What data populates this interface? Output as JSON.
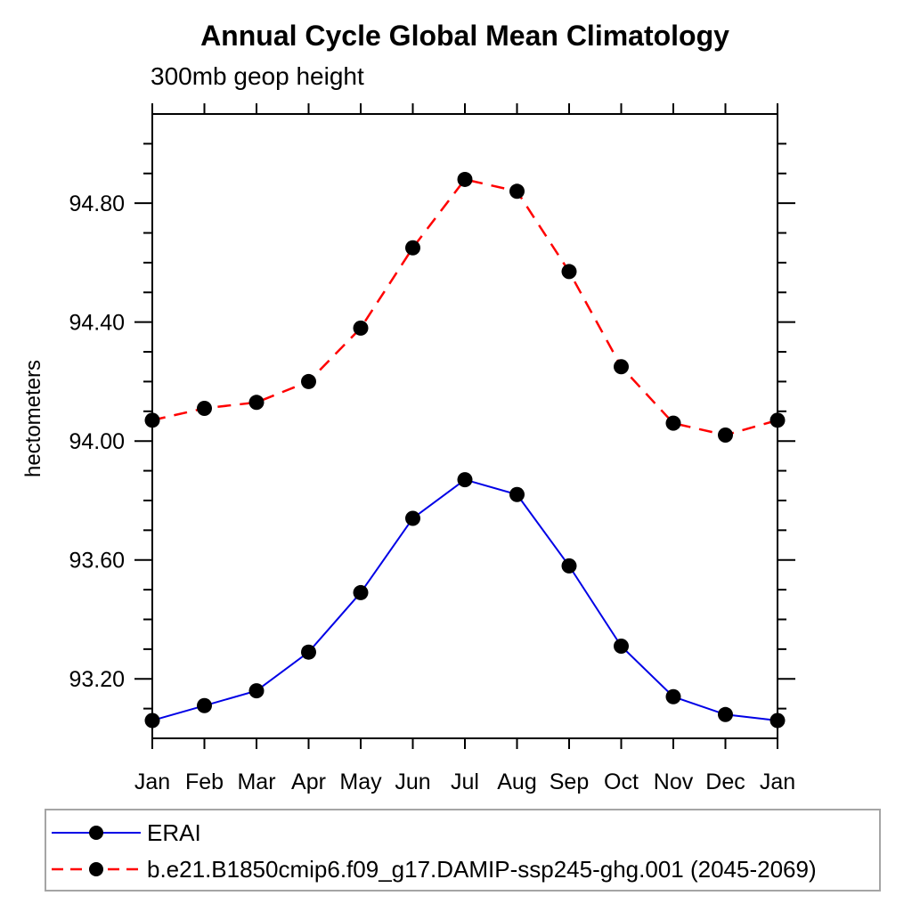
{
  "chart_data": {
    "type": "line",
    "title": "Annual Cycle Global Mean Climatology",
    "subtitle": "300mb geop height",
    "ylabel": "hectometers",
    "xlabel": "",
    "categories": [
      "Jan",
      "Feb",
      "Mar",
      "Apr",
      "May",
      "Jun",
      "Jul",
      "Aug",
      "Sep",
      "Oct",
      "Nov",
      "Dec",
      "Jan"
    ],
    "ylim": [
      93.0,
      95.1
    ],
    "ytick_major_start": 93.2,
    "ytick_major_step": 0.4,
    "ytick_minor_step": 0.1,
    "ytick_labels": [
      "93.20",
      "93.60",
      "94.00",
      "94.40",
      "94.80"
    ],
    "grid": false,
    "legend_position": "bottom-left-box",
    "frame_color": "#000000",
    "legend_border_color": "#a5a5a5",
    "marker_color": "#000000",
    "series": [
      {
        "name": "ERAI",
        "color": "#0000e6",
        "line_style": "solid",
        "marker": "circle",
        "values": [
          93.06,
          93.11,
          93.16,
          93.29,
          93.49,
          93.74,
          93.87,
          93.82,
          93.58,
          93.31,
          93.14,
          93.08,
          93.06
        ]
      },
      {
        "name": "b.e21.B1850cmip6.f09_g17.DAMIP-ssp245-ghg.001 (2045-2069)",
        "color": "#ff0000",
        "line_style": "dashed",
        "marker": "circle",
        "values": [
          94.07,
          94.11,
          94.13,
          94.2,
          94.38,
          94.65,
          94.88,
          94.84,
          94.57,
          94.25,
          94.06,
          94.02,
          94.07
        ]
      }
    ]
  }
}
